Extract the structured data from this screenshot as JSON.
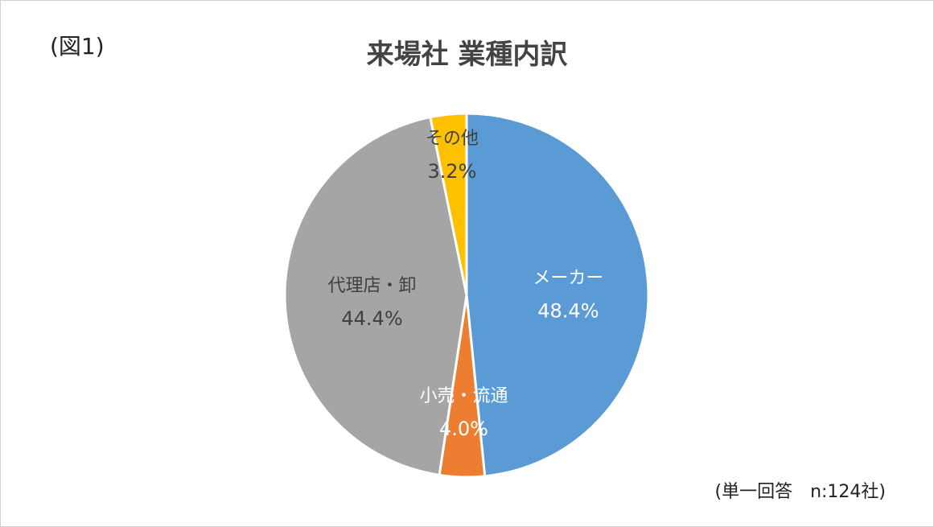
{
  "figure_label": "(図1)",
  "note": "(単一回答　n:124社)",
  "chart_data": {
    "type": "pie",
    "title": "来場社 業種内訳",
    "unit": "%",
    "slices": [
      {
        "name": "メーカー",
        "value": 48.4,
        "value_label": "48.4%",
        "color": "#5b9bd5"
      },
      {
        "name": "小売・流通",
        "value": 4.0,
        "value_label": "4.0%",
        "color": "#ed7d31"
      },
      {
        "name": "代理店・卸",
        "value": 44.4,
        "value_label": "44.4%",
        "color": "#a5a5a5"
      },
      {
        "name": "その他",
        "value": 3.2,
        "value_label": "3.2%",
        "color": "#ffc000"
      }
    ],
    "start_angle": "12 o'clock",
    "direction": "clockwise",
    "legend": "none"
  }
}
